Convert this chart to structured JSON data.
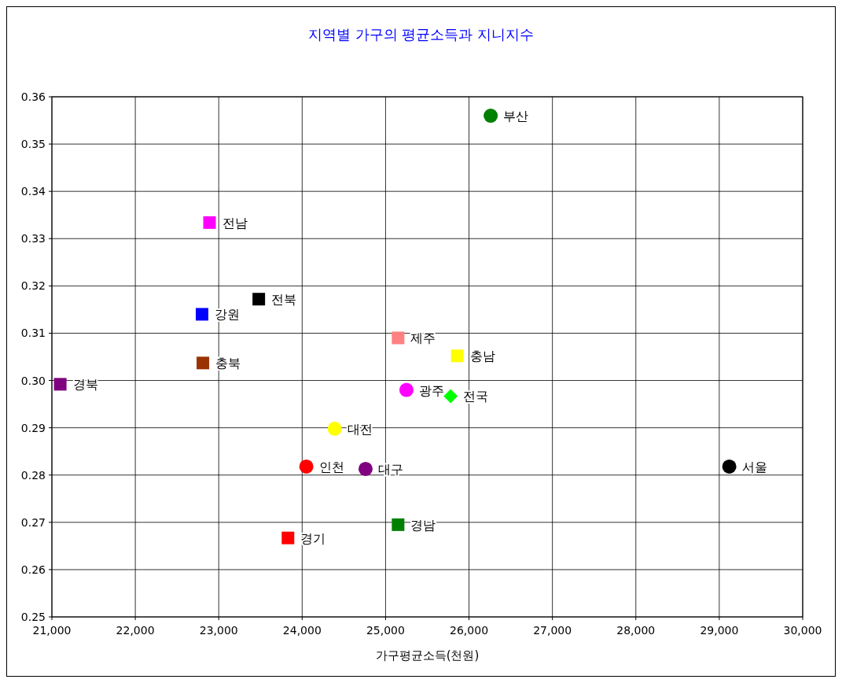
{
  "chart_data": {
    "type": "scatter",
    "title": "지역별 가구의 평균소득과 지니지수",
    "xlabel": "가구평균소득(천원)",
    "xlim": [
      21000,
      30000
    ],
    "xticks": [
      {
        "value": 21000,
        "label": "21,000"
      },
      {
        "value": 22000,
        "label": "22,000"
      },
      {
        "value": 23000,
        "label": "23,000"
      },
      {
        "value": 24000,
        "label": "24,000"
      },
      {
        "value": 25000,
        "label": "25,000"
      },
      {
        "value": 26000,
        "label": "26,000"
      },
      {
        "value": 27000,
        "label": "27,000"
      },
      {
        "value": 28000,
        "label": "28,000"
      },
      {
        "value": 29000,
        "label": "29,000"
      },
      {
        "value": 30000,
        "label": "30,000"
      }
    ],
    "ylim": [
      0.25,
      0.36
    ],
    "yticks": [
      {
        "value": 0.25,
        "label": "0.25"
      },
      {
        "value": 0.26,
        "label": "0.26"
      },
      {
        "value": 0.27,
        "label": "0.27"
      },
      {
        "value": 0.28,
        "label": "0.28"
      },
      {
        "value": 0.29,
        "label": "0.29"
      },
      {
        "value": 0.3,
        "label": "0.30"
      },
      {
        "value": 0.31,
        "label": "0.31"
      },
      {
        "value": 0.32,
        "label": "0.32"
      },
      {
        "value": 0.33,
        "label": "0.33"
      },
      {
        "value": 0.34,
        "label": "0.34"
      },
      {
        "value": 0.35,
        "label": "0.35"
      },
      {
        "value": 0.36,
        "label": "0.36"
      }
    ],
    "grid": true,
    "series": [
      {
        "name": "부산",
        "color": "#008000",
        "marker": "circle",
        "x": [
          26260
        ],
        "values": [
          0.356
        ]
      },
      {
        "name": "전남",
        "color": "#ff00ff",
        "marker": "square",
        "x": [
          22890
        ],
        "values": [
          0.3334
        ]
      },
      {
        "name": "전북",
        "color": "#000000",
        "marker": "square",
        "x": [
          23480
        ],
        "values": [
          0.3172
        ]
      },
      {
        "name": "강원",
        "color": "#0000ff",
        "marker": "square",
        "x": [
          22800
        ],
        "values": [
          0.314
        ]
      },
      {
        "name": "충북",
        "color": "#993300",
        "marker": "square",
        "x": [
          22810
        ],
        "values": [
          0.3037
        ]
      },
      {
        "name": "경북",
        "color": "#800080",
        "marker": "square",
        "x": [
          21100
        ],
        "values": [
          0.2992
        ]
      },
      {
        "name": "제주",
        "color": "#ff8080",
        "marker": "square",
        "x": [
          25150
        ],
        "values": [
          0.309
        ]
      },
      {
        "name": "충남",
        "color": "#ffff00",
        "marker": "square",
        "x": [
          25860
        ],
        "values": [
          0.3052
        ]
      },
      {
        "name": "광주",
        "color": "#ff00ff",
        "marker": "circle",
        "x": [
          25250
        ],
        "values": [
          0.298
        ]
      },
      {
        "name": "전국",
        "color": "#00ff00",
        "marker": "diamond",
        "x": [
          25780
        ],
        "values": [
          0.2967
        ]
      },
      {
        "name": "대전",
        "color": "#ffff00",
        "marker": "circle",
        "x": [
          24390
        ],
        "values": [
          0.2898
        ]
      },
      {
        "name": "인천",
        "color": "#ff0000",
        "marker": "circle",
        "x": [
          24050
        ],
        "values": [
          0.2818
        ]
      },
      {
        "name": "대구",
        "color": "#800080",
        "marker": "circle",
        "x": [
          24760
        ],
        "values": [
          0.2813
        ]
      },
      {
        "name": "서울",
        "color": "#000000",
        "marker": "circle",
        "x": [
          29120
        ],
        "values": [
          0.2818
        ]
      },
      {
        "name": "경남",
        "color": "#008000",
        "marker": "square",
        "x": [
          25150
        ],
        "values": [
          0.2695
        ]
      },
      {
        "name": "경기",
        "color": "#ff0000",
        "marker": "square",
        "x": [
          23830
        ],
        "values": [
          0.2667
        ]
      }
    ]
  }
}
